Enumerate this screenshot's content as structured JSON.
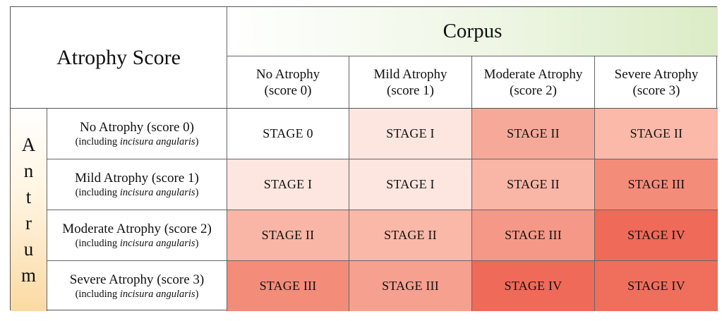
{
  "table": {
    "title": "Atrophy Score",
    "corpus_label": "Corpus",
    "antrum_letters": [
      "A",
      "n",
      "t",
      "r",
      "u",
      "m"
    ],
    "columns": [
      {
        "name": "No Atrophy",
        "score": "(score 0)"
      },
      {
        "name": "Mild Atrophy",
        "score": "(score 1)"
      },
      {
        "name": "Moderate Atrophy",
        "score": "(score 2)"
      },
      {
        "name": "Severe Atrophy",
        "score": "(score 3)"
      }
    ],
    "rows": [
      {
        "name": "No Atrophy (score 0)",
        "note_prefix": "(including ",
        "note_italic": "incisura angularis",
        "note_suffix": ")",
        "cells": [
          "STAGE 0",
          "STAGE I",
          "STAGE II",
          "STAGE II"
        ]
      },
      {
        "name": "Mild Atrophy (score 1)",
        "note_prefix": "(including ",
        "note_italic": "incisura angularis",
        "note_suffix": ")",
        "cells": [
          "STAGE I",
          "STAGE I",
          "STAGE II",
          "STAGE III"
        ]
      },
      {
        "name": "Moderate Atrophy (score 2)",
        "note_prefix": "(including ",
        "note_italic": "incisura angularis",
        "note_suffix": ")",
        "cells": [
          "STAGE II",
          "STAGE II",
          "STAGE III",
          "STAGE IV"
        ]
      },
      {
        "name": "Severe Atrophy (score 3)",
        "note_prefix": "(including ",
        "note_italic": "incisura angularis",
        "note_suffix": ")",
        "cells": [
          "STAGE III",
          "STAGE III",
          "STAGE IV",
          "STAGE IV"
        ]
      }
    ],
    "cell_colors": [
      [
        "#ffffff",
        "#fde6df",
        "#f7a999",
        "#fbb9a9"
      ],
      [
        "#fde6df",
        "#fde6df",
        "#f9b5a5",
        "#f48c7a"
      ],
      [
        "#f9b5a5",
        "#fab8a8",
        "#f59888",
        "#ef6a58"
      ],
      [
        "#f48c7a",
        "#f6a08f",
        "#ef6a58",
        "#ef6f5c"
      ]
    ],
    "heading_colors": {
      "corpus_gradient_end": "#dbecc6",
      "antrum_gradient_end": "#fbd9a2"
    }
  }
}
